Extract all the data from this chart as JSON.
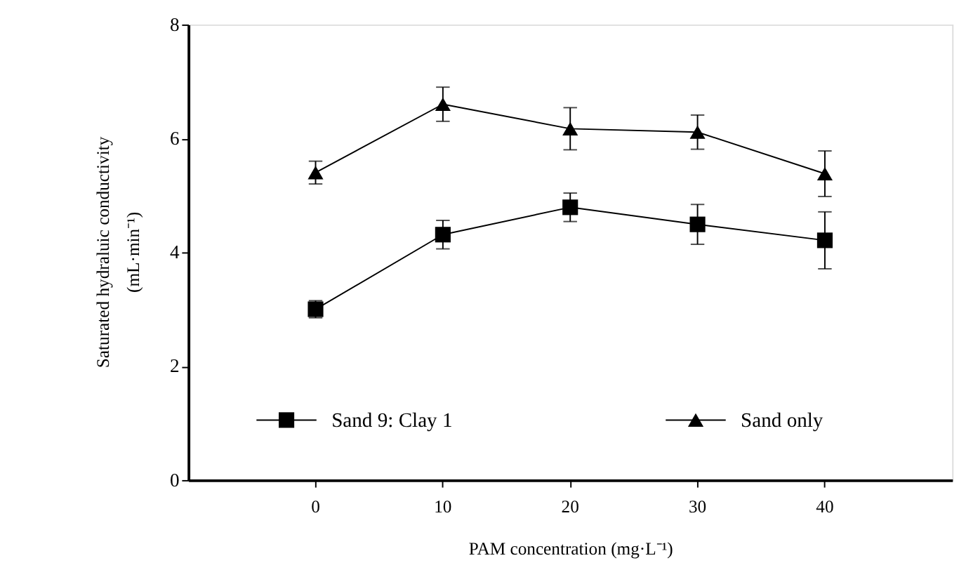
{
  "chart_data": {
    "type": "line",
    "xlabel": "PAM concentration (mg·L⁻¹)",
    "ylabel": "Saturated hydraluic conductivity (mL·min⁻¹)",
    "categories": [
      "0",
      "10",
      "20",
      "30",
      "40"
    ],
    "ylim": [
      0,
      8
    ],
    "yticks": [
      0,
      2,
      4,
      6,
      8
    ],
    "grid": false,
    "legend": "bottom",
    "line_style": "solid",
    "series": [
      {
        "name": "Sand 9: Clay 1",
        "color": "#000000",
        "marker": "square",
        "values": [
          3.0,
          4.31,
          4.79,
          4.49,
          4.21
        ],
        "errors": [
          0.15,
          0.25,
          0.25,
          0.35,
          0.5
        ]
      },
      {
        "name": "Sand only",
        "color": "#000000",
        "marker": "triangle",
        "values": [
          5.4,
          6.6,
          6.17,
          6.11,
          5.38
        ],
        "errors": [
          0.2,
          0.3,
          0.37,
          0.3,
          0.4
        ]
      }
    ]
  }
}
